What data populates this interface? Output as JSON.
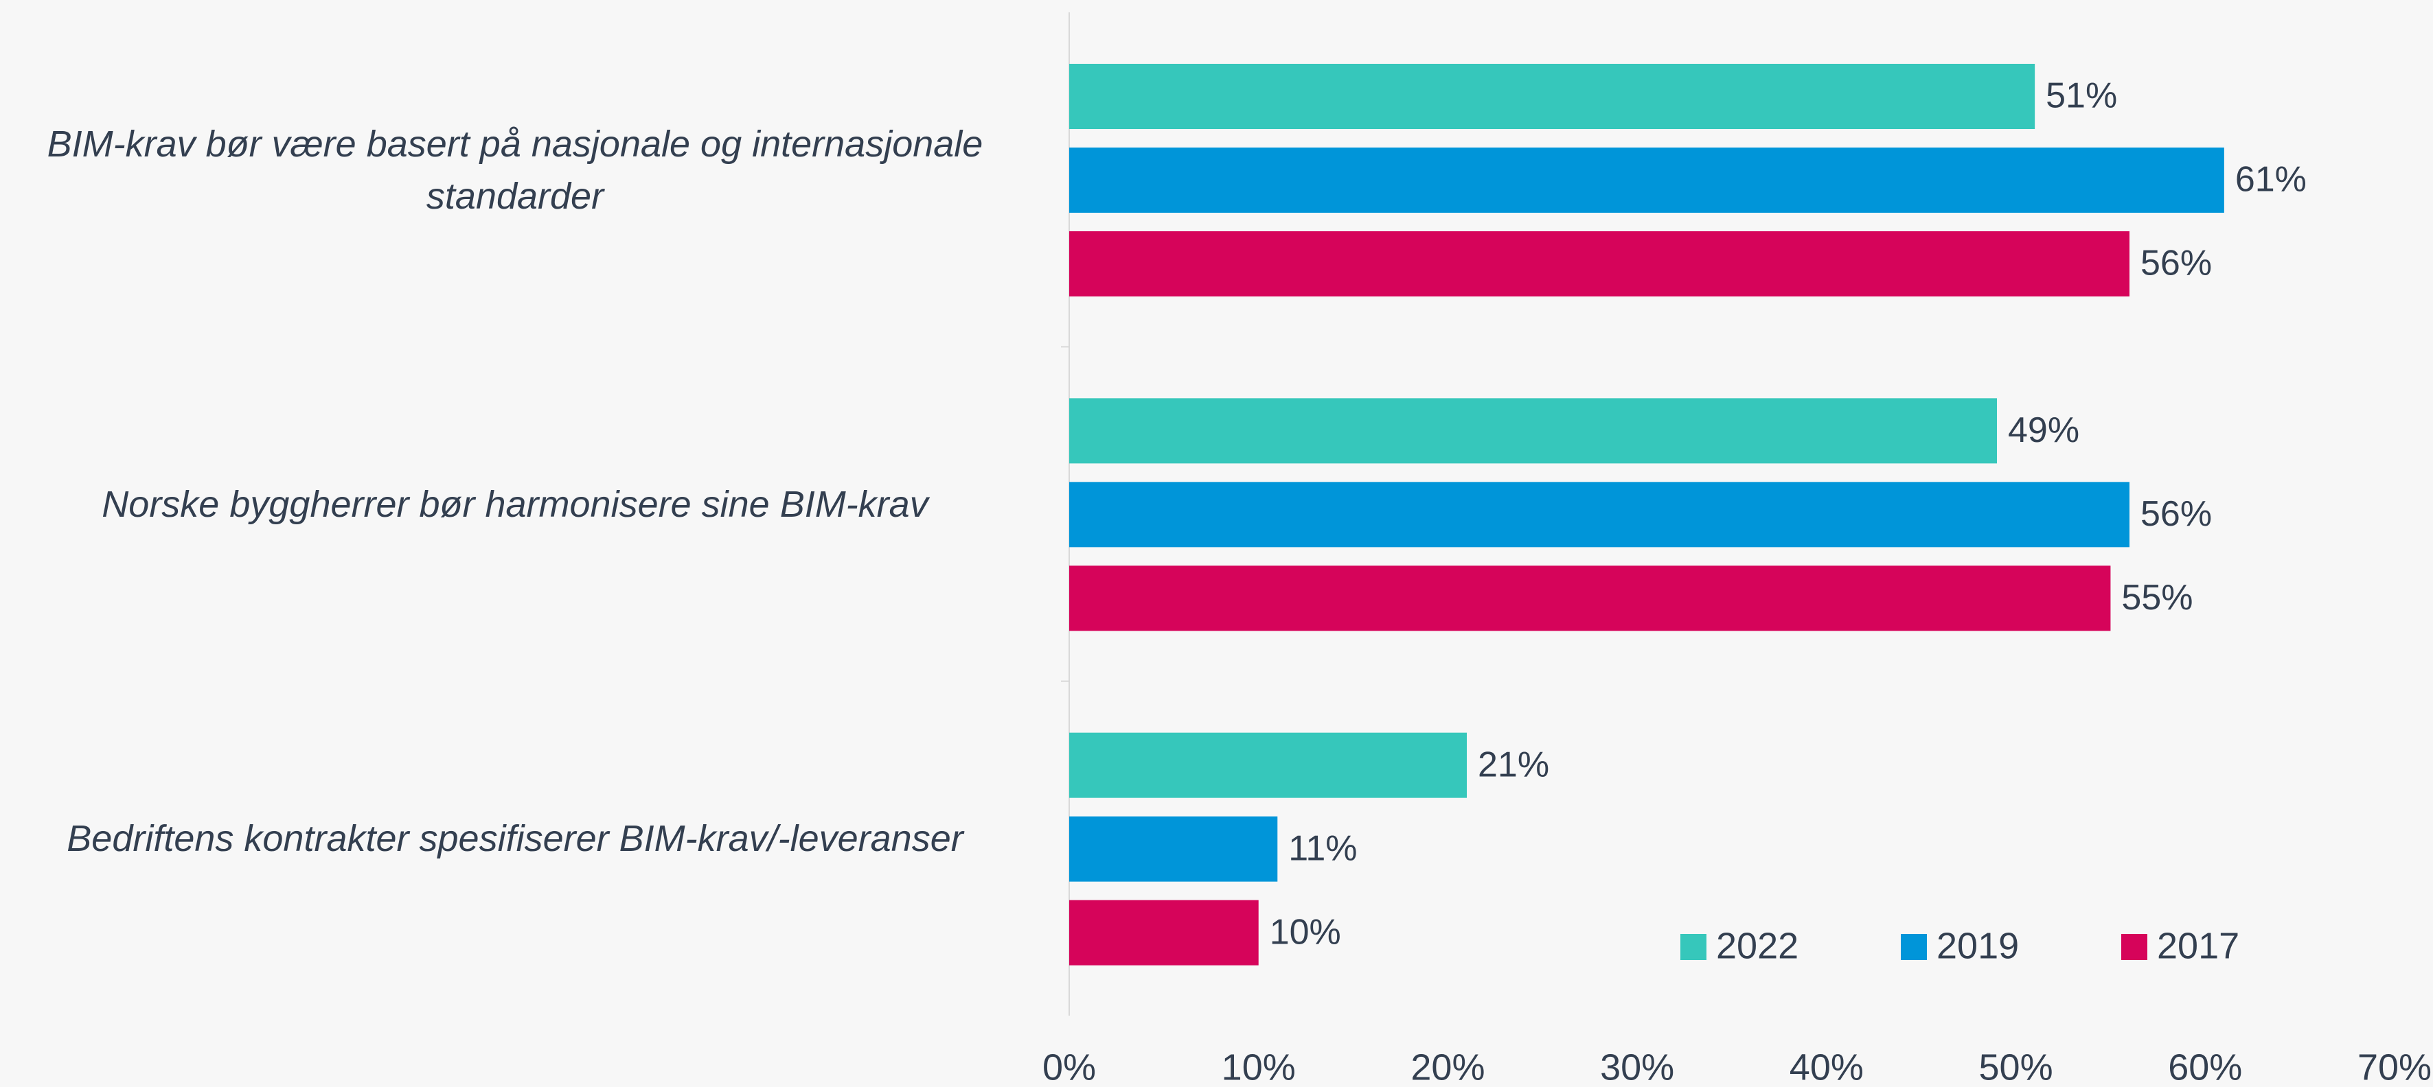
{
  "chart_data": {
    "type": "barh",
    "categories": [
      "BIM-krav bør være basert på nasjonale og internasjonale standarder",
      "Norske byggherrer bør harmonisere sine BIM-krav",
      "Bedriftens kontrakter spesifiserer BIM-krav/-leveranser"
    ],
    "series": [
      {
        "name": "2022",
        "color": "#36c7bb",
        "values": [
          51,
          49,
          21
        ],
        "value_labels": [
          "51%",
          "49%",
          "21%"
        ]
      },
      {
        "name": "2019",
        "color": "#0095d9",
        "values": [
          61,
          56,
          11
        ],
        "value_labels": [
          "61%",
          "56%",
          "11%"
        ]
      },
      {
        "name": "2017",
        "color": "#d6045a",
        "values": [
          56,
          55,
          10
        ],
        "value_labels": [
          "56%",
          "55%",
          "10%"
        ]
      }
    ],
    "xlim": [
      0,
      70
    ],
    "xticks": [
      {
        "value": 0,
        "label": "0%"
      },
      {
        "value": 10,
        "label": "10%"
      },
      {
        "value": 20,
        "label": "20%"
      },
      {
        "value": 30,
        "label": "30%"
      },
      {
        "value": 40,
        "label": "40%"
      },
      {
        "value": 50,
        "label": "50%"
      },
      {
        "value": 60,
        "label": "60%"
      },
      {
        "value": 70,
        "label": "70%"
      }
    ],
    "legend": "bottom-right"
  }
}
